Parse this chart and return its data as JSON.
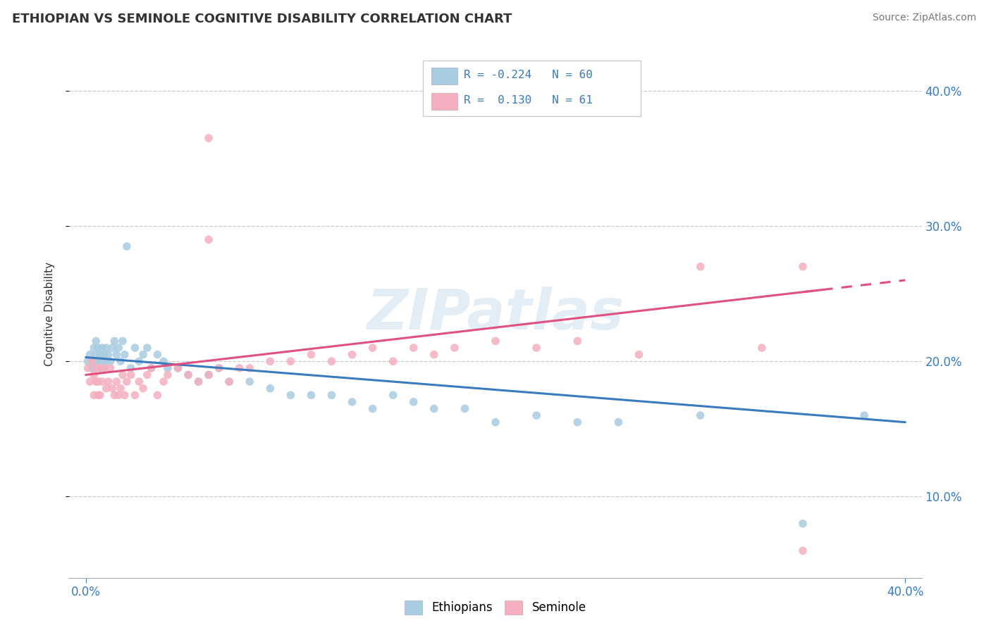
{
  "title": "ETHIOPIAN VS SEMINOLE COGNITIVE DISABILITY CORRELATION CHART",
  "source": "Source: ZipAtlas.com",
  "ylabel": "Cognitive Disability",
  "xlim": [
    0.0,
    0.4
  ],
  "ylim": [
    0.04,
    0.43
  ],
  "yticks": [
    0.1,
    0.2,
    0.3,
    0.4
  ],
  "ytick_labels": [
    "10.0%",
    "20.0%",
    "30.0%",
    "40.0%"
  ],
  "blue_color": "#a8cce0",
  "pink_color": "#f4afc0",
  "blue_line": "#3a7abf",
  "pink_line": "#e05080",
  "watermark": "ZIPatlas",
  "eth_x": [
    0.001,
    0.002,
    0.003,
    0.004,
    0.004,
    0.005,
    0.005,
    0.006,
    0.006,
    0.007,
    0.007,
    0.008,
    0.008,
    0.009,
    0.009,
    0.01,
    0.01,
    0.011,
    0.012,
    0.013,
    0.014,
    0.015,
    0.016,
    0.017,
    0.018,
    0.019,
    0.02,
    0.022,
    0.024,
    0.026,
    0.028,
    0.03,
    0.032,
    0.035,
    0.038,
    0.04,
    0.045,
    0.05,
    0.055,
    0.06,
    0.065,
    0.07,
    0.08,
    0.09,
    0.1,
    0.11,
    0.12,
    0.13,
    0.14,
    0.15,
    0.16,
    0.17,
    0.185,
    0.2,
    0.22,
    0.24,
    0.26,
    0.3,
    0.35,
    0.38
  ],
  "eth_y": [
    0.2,
    0.205,
    0.195,
    0.21,
    0.2,
    0.205,
    0.215,
    0.2,
    0.21,
    0.205,
    0.195,
    0.21,
    0.2,
    0.205,
    0.195,
    0.21,
    0.2,
    0.205,
    0.2,
    0.21,
    0.215,
    0.205,
    0.21,
    0.2,
    0.215,
    0.205,
    0.285,
    0.195,
    0.21,
    0.2,
    0.205,
    0.21,
    0.195,
    0.205,
    0.2,
    0.195,
    0.195,
    0.19,
    0.185,
    0.19,
    0.195,
    0.185,
    0.185,
    0.18,
    0.175,
    0.175,
    0.175,
    0.17,
    0.165,
    0.175,
    0.17,
    0.165,
    0.165,
    0.155,
    0.16,
    0.155,
    0.155,
    0.16,
    0.08,
    0.16
  ],
  "sem_x": [
    0.001,
    0.002,
    0.003,
    0.004,
    0.004,
    0.005,
    0.005,
    0.006,
    0.006,
    0.007,
    0.007,
    0.008,
    0.009,
    0.01,
    0.011,
    0.012,
    0.013,
    0.014,
    0.015,
    0.016,
    0.017,
    0.018,
    0.019,
    0.02,
    0.022,
    0.024,
    0.026,
    0.028,
    0.03,
    0.032,
    0.035,
    0.038,
    0.04,
    0.045,
    0.05,
    0.055,
    0.06,
    0.065,
    0.07,
    0.075,
    0.08,
    0.09,
    0.1,
    0.11,
    0.12,
    0.13,
    0.14,
    0.15,
    0.16,
    0.17,
    0.18,
    0.2,
    0.22,
    0.24,
    0.27,
    0.3,
    0.33,
    0.35,
    0.06,
    0.06,
    0.35
  ],
  "sem_y": [
    0.195,
    0.185,
    0.2,
    0.175,
    0.19,
    0.185,
    0.195,
    0.175,
    0.185,
    0.195,
    0.175,
    0.185,
    0.195,
    0.18,
    0.185,
    0.195,
    0.18,
    0.175,
    0.185,
    0.175,
    0.18,
    0.19,
    0.175,
    0.185,
    0.19,
    0.175,
    0.185,
    0.18,
    0.19,
    0.195,
    0.175,
    0.185,
    0.19,
    0.195,
    0.19,
    0.185,
    0.19,
    0.195,
    0.185,
    0.195,
    0.195,
    0.2,
    0.2,
    0.205,
    0.2,
    0.205,
    0.21,
    0.2,
    0.21,
    0.205,
    0.21,
    0.215,
    0.21,
    0.215,
    0.205,
    0.27,
    0.21,
    0.27,
    0.365,
    0.29,
    0.06
  ],
  "eth_line_x": [
    0.0,
    0.4
  ],
  "eth_line_y": [
    0.203,
    0.155
  ],
  "sem_line_x": [
    0.0,
    0.4
  ],
  "sem_line_y": [
    0.19,
    0.26
  ]
}
